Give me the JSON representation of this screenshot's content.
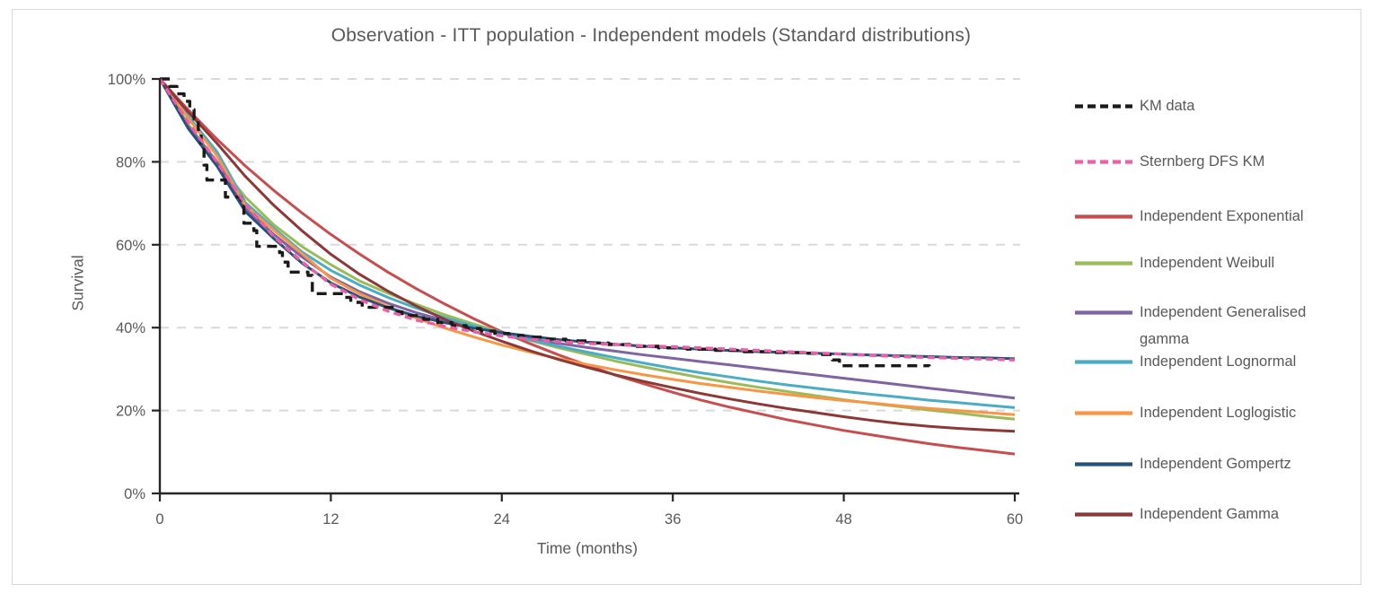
{
  "chart_data": {
    "type": "line",
    "title": "Observation - ITT population - Independent models (Standard distributions)",
    "xlabel": "Time (months)",
    "ylabel": "Survival",
    "xlim": [
      0,
      60
    ],
    "ylim": [
      0,
      100
    ],
    "x_ticks": [
      0,
      12,
      24,
      36,
      48,
      60
    ],
    "y_ticks": [
      {
        "value": 0,
        "label": "0%"
      },
      {
        "value": 20,
        "label": "20%"
      },
      {
        "value": 40,
        "label": "40%"
      },
      {
        "value": 60,
        "label": "60%"
      },
      {
        "value": 80,
        "label": "80%"
      },
      {
        "value": 100,
        "label": "100%"
      }
    ],
    "grid": "horizontal-dashed",
    "legend_position": "right",
    "axis_color": "#262626",
    "grid_color": "#D9D9D9",
    "text_color": "#595959",
    "model_x": [
      0,
      2,
      4,
      6,
      8,
      10,
      12,
      14,
      16,
      18,
      20,
      22,
      24,
      26,
      28,
      30,
      32,
      34,
      36,
      38,
      40,
      42,
      44,
      46,
      48,
      50,
      52,
      54,
      56,
      58,
      60
    ],
    "series": [
      {
        "name": "KM data",
        "color": "#1A1A1A",
        "dash": "11 7",
        "width": 3.4,
        "step": true,
        "points": [
          [
            0,
            100
          ],
          [
            0.7,
            98.2
          ],
          [
            1.2,
            96.4
          ],
          [
            1.7,
            94.6
          ],
          [
            2.1,
            92.6
          ],
          [
            2.4,
            90.3
          ],
          [
            2.7,
            87.8
          ],
          [
            2.9,
            83.8
          ],
          [
            3.1,
            79.2
          ],
          [
            3.3,
            75.6
          ],
          [
            4.6,
            71.5
          ],
          [
            5.7,
            70.3
          ],
          [
            5.9,
            65.2
          ],
          [
            6.6,
            63.4
          ],
          [
            6.8,
            59.6
          ],
          [
            8.4,
            58.1
          ],
          [
            8.6,
            55.8
          ],
          [
            9.0,
            53.4
          ],
          [
            10.4,
            52.6
          ],
          [
            10.7,
            48.2
          ],
          [
            13.0,
            47.3
          ],
          [
            13.4,
            46.1
          ],
          [
            14.2,
            44.9
          ],
          [
            16.5,
            43.8
          ],
          [
            17.0,
            42.9
          ],
          [
            18.5,
            42.0
          ],
          [
            19.5,
            41.2
          ],
          [
            20.5,
            40.5
          ],
          [
            21.5,
            39.8
          ],
          [
            22.5,
            39.2
          ],
          [
            23.5,
            38.6
          ],
          [
            24.5,
            38.1
          ],
          [
            25.5,
            37.7
          ],
          [
            27.0,
            37.2
          ],
          [
            28.5,
            36.8
          ],
          [
            30.0,
            36.3
          ],
          [
            31.5,
            35.9
          ],
          [
            33.0,
            35.5
          ],
          [
            35.0,
            35.1
          ],
          [
            37.0,
            34.8
          ],
          [
            39.0,
            34.5
          ],
          [
            41.0,
            34.2
          ],
          [
            43.0,
            34.0
          ],
          [
            45.0,
            33.8
          ],
          [
            46.5,
            33.5
          ],
          [
            47.2,
            32.2
          ],
          [
            47.7,
            30.8
          ],
          [
            54.0,
            30.7
          ]
        ]
      },
      {
        "name": "Sternberg DFS KM",
        "color": "#EC5FA7",
        "dash": "8 5",
        "width": 3.4,
        "y": [
          100,
          89.5,
          80,
          69.8,
          62,
          55.8,
          50.5,
          46.8,
          44,
          41.8,
          40.3,
          39,
          38,
          37.2,
          36.6,
          36.2,
          35.9,
          35.6,
          35.4,
          35.1,
          34.8,
          34.5,
          34.2,
          33.9,
          33.6,
          33.3,
          33,
          32.8,
          32.6,
          32.4,
          32.2
        ]
      },
      {
        "name": "Independent Exponential",
        "color": "#C84D4F",
        "width": 3,
        "y": [
          100,
          92.5,
          85.5,
          79,
          73.1,
          67.6,
          62.5,
          57.8,
          53.4,
          49.4,
          45.7,
          42.2,
          39,
          36.1,
          33.4,
          30.9,
          28.5,
          26.4,
          24.4,
          22.5,
          20.8,
          19.3,
          17.8,
          16.5,
          15.2,
          14.1,
          13,
          12,
          11.1,
          10.3,
          9.5
        ]
      },
      {
        "name": "Independent Weibull",
        "color": "#9BBB59",
        "width": 3,
        "y": [
          100,
          89,
          80,
          71.5,
          64.8,
          59.5,
          55.2,
          51.3,
          48.3,
          45.6,
          43.1,
          40.9,
          38.8,
          36.9,
          35.1,
          33.5,
          31.9,
          30.5,
          29.2,
          27.9,
          26.7,
          25.6,
          24.6,
          23.6,
          22.6,
          21.7,
          20.9,
          20.1,
          19.4,
          18.6,
          17.9
        ]
      },
      {
        "name": "Independent Generalised gamma",
        "color": "#8064A2",
        "width": 3,
        "y": [
          100,
          88.5,
          80,
          68.8,
          62.5,
          57,
          52.2,
          48.7,
          45.9,
          43.6,
          41.7,
          40,
          38.6,
          37.3,
          36.2,
          35.2,
          34.3,
          33.4,
          32.6,
          31.8,
          31,
          30.2,
          29.4,
          28.6,
          27.8,
          27,
          26.2,
          25.4,
          24.6,
          23.8,
          23
        ]
      },
      {
        "name": "Independent Lognormal",
        "color": "#4BACC6",
        "width": 3,
        "y": [
          100,
          91,
          82.5,
          70.2,
          64,
          58.2,
          53.8,
          50.3,
          47.3,
          44.7,
          42.4,
          40.4,
          38.6,
          37,
          35.5,
          34.1,
          32.7,
          31.4,
          30.2,
          29.1,
          28.1,
          27.1,
          26.2,
          25.4,
          24.6,
          23.9,
          23.2,
          22.5,
          21.9,
          21.3,
          20.7
        ]
      },
      {
        "name": "Independent Loglogistic",
        "color": "#F79646",
        "width": 3,
        "y": [
          100,
          90.5,
          81.5,
          69.5,
          63.5,
          57.8,
          51.9,
          48.2,
          45.1,
          42.3,
          39.9,
          37.8,
          35.8,
          34.1,
          32.5,
          31.1,
          29.8,
          28.6,
          27.5,
          26.5,
          25.6,
          24.7,
          23.9,
          23.1,
          22.4,
          21.8,
          21.1,
          20.5,
          20,
          19.5,
          19
        ]
      },
      {
        "name": "Independent Gompertz",
        "color": "#24527C",
        "width": 3,
        "y": [
          100,
          88,
          79,
          68,
          61.5,
          55.5,
          50.8,
          47.4,
          44.8,
          42.8,
          41.2,
          39.9,
          38.8,
          37.9,
          37.1,
          36.5,
          36,
          35.5,
          35.1,
          34.8,
          34.5,
          34.2,
          34,
          33.8,
          33.6,
          33.4,
          33.2,
          33,
          32.8,
          32.7,
          32.5
        ]
      },
      {
        "name": "Independent Gamma",
        "color": "#8C3836",
        "width": 3,
        "y": [
          100,
          92,
          84.5,
          76.5,
          69.5,
          63.3,
          57.7,
          52.9,
          48.8,
          45.2,
          42,
          39.2,
          36.7,
          34.4,
          32.3,
          30.4,
          28.6,
          27,
          25.5,
          24.1,
          22.8,
          21.6,
          20.5,
          19.5,
          18.5,
          17.6,
          16.8,
          16.2,
          15.7,
          15.3,
          15
        ]
      }
    ]
  }
}
